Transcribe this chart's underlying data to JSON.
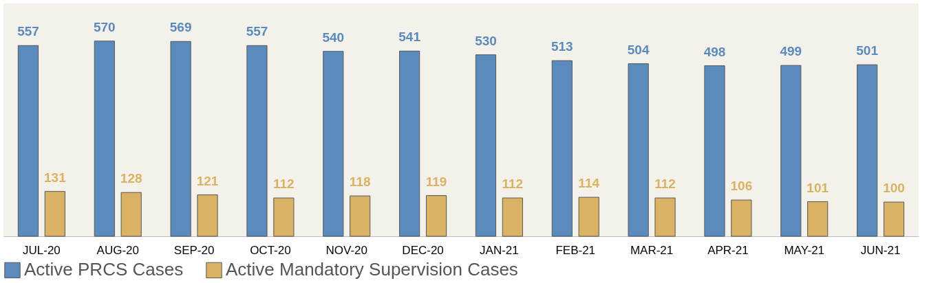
{
  "chart_data": {
    "type": "bar",
    "categories": [
      "JUL-20",
      "AUG-20",
      "SEP-20",
      "OCT-20",
      "NOV-20",
      "DEC-20",
      "JAN-21",
      "FEB-21",
      "MAR-21",
      "APR-21",
      "MAY-21",
      "JUN-21"
    ],
    "series": [
      {
        "name": "Active PRCS Cases",
        "color": "#5b8bbd",
        "values": [
          557,
          570,
          569,
          557,
          540,
          541,
          530,
          513,
          504,
          498,
          499,
          501
        ]
      },
      {
        "name": "Active Mandatory Supervision Cases",
        "color": "#d9b263",
        "values": [
          131,
          128,
          121,
          112,
          118,
          119,
          112,
          114,
          112,
          106,
          101,
          100
        ]
      }
    ],
    "ylim": [
      0,
      680
    ],
    "tick_labels": "x",
    "data_labels": true,
    "grid": false,
    "legend": "bottom"
  }
}
